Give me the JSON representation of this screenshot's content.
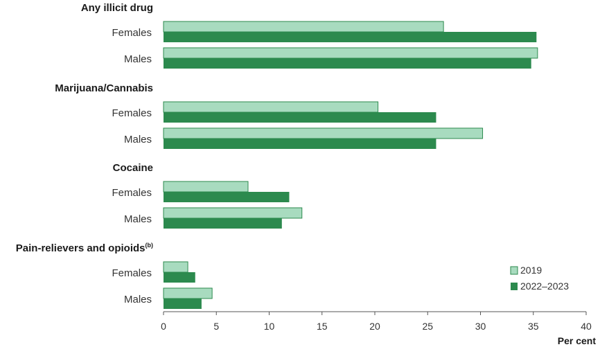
{
  "chart_data": {
    "type": "bar",
    "orientation": "horizontal",
    "xlabel": "Per cent",
    "xlim": [
      0,
      40
    ],
    "xticks": [
      0,
      5,
      10,
      15,
      20,
      25,
      30,
      35,
      40
    ],
    "grid": false,
    "legend_position": "bottom-right",
    "colors": {
      "2019": "#a8dbbf",
      "2022–2023": "#2c8a4e",
      "2019_border": "#2c8a4e"
    },
    "groups": [
      {
        "label": "Any illicit drug",
        "label_sup": "",
        "rows": [
          {
            "label": "Females",
            "values": [
              26.5,
              35.3
            ]
          },
          {
            "label": "Males",
            "values": [
              35.4,
              34.8
            ]
          }
        ]
      },
      {
        "label": "Marijuana/Cannabis",
        "label_sup": "",
        "rows": [
          {
            "label": "Females",
            "values": [
              20.3,
              25.8
            ]
          },
          {
            "label": "Males",
            "values": [
              30.2,
              25.8
            ]
          }
        ]
      },
      {
        "label": "Cocaine",
        "label_sup": "",
        "rows": [
          {
            "label": "Females",
            "values": [
              8.0,
              11.9
            ]
          },
          {
            "label": "Males",
            "values": [
              13.1,
              11.2
            ]
          }
        ]
      },
      {
        "label": "Pain-relievers and opioids",
        "label_sup": "(b)",
        "rows": [
          {
            "label": "Females",
            "values": [
              2.3,
              3.0
            ]
          },
          {
            "label": "Males",
            "values": [
              4.6,
              3.6
            ]
          }
        ]
      }
    ],
    "series": [
      {
        "name": "2019"
      },
      {
        "name": "2022–2023"
      }
    ]
  }
}
